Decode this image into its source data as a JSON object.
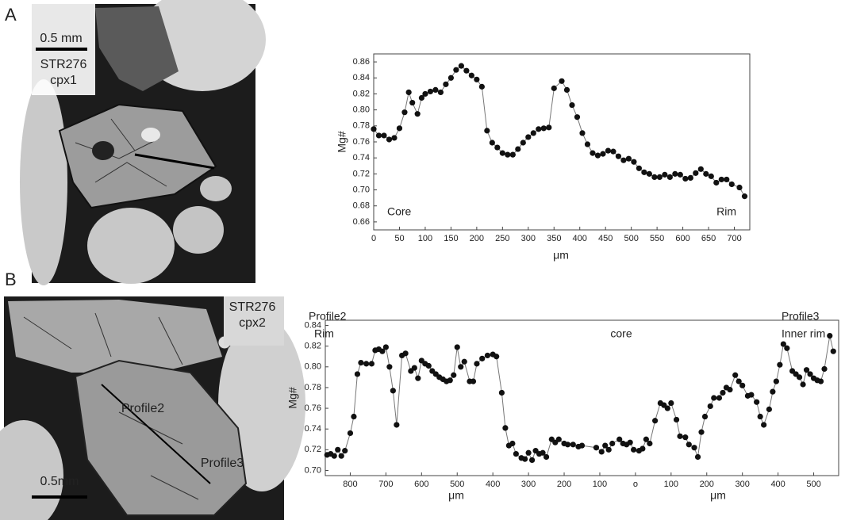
{
  "panels": [
    {
      "label": "A",
      "sample": "STR276",
      "crystal": "cpx1",
      "scale": "0.5 mm"
    },
    {
      "label": "B",
      "sample": "STR276",
      "crystal": "cpx2",
      "scale": "0.5mm",
      "profiles": [
        "Profile2",
        "Profile3"
      ]
    }
  ],
  "chart_data": [
    {
      "type": "line",
      "ylabel": "Mg#",
      "xlabels": [
        "μm"
      ],
      "annotations": [
        "Core",
        "Rim"
      ],
      "xlim": [
        0,
        730
      ],
      "ylim": [
        0.65,
        0.87
      ],
      "xticks": [
        0,
        50,
        100,
        150,
        200,
        250,
        300,
        350,
        400,
        450,
        500,
        550,
        600,
        650,
        700
      ],
      "yticks": [
        {
          "value": 0.66,
          "label": "0.66"
        },
        {
          "value": 0.68,
          "label": "0.68"
        },
        {
          "value": 0.7,
          "label": "0.70"
        },
        {
          "value": 0.72,
          "label": "0.72"
        },
        {
          "value": 0.74,
          "label": "0.74"
        },
        {
          "value": 0.76,
          "label": "0.76"
        },
        {
          "value": 0.78,
          "label": "0.78"
        },
        {
          "value": 0.8,
          "label": "0.80"
        },
        {
          "value": 0.82,
          "label": "0.82"
        },
        {
          "value": 0.84,
          "label": "0.84"
        },
        {
          "value": 0.86,
          "label": "0.86"
        }
      ],
      "line_color": "#777777",
      "x": [
        0,
        10,
        20,
        30,
        40,
        50,
        60,
        68,
        75,
        85,
        93,
        100,
        110,
        120,
        130,
        140,
        150,
        160,
        170,
        180,
        190,
        200,
        210,
        220,
        230,
        240,
        250,
        260,
        270,
        280,
        290,
        300,
        310,
        320,
        330,
        340,
        350,
        365,
        375,
        385,
        395,
        405,
        415,
        425,
        435,
        445,
        455,
        465,
        475,
        485,
        495,
        505,
        515,
        525,
        535,
        545,
        555,
        565,
        575,
        585,
        595,
        605,
        615,
        625,
        635,
        645,
        655,
        665,
        675,
        685,
        695,
        710,
        720
      ],
      "series": [
        {
          "color": "#111111",
          "values": [
            0.776,
            0.768,
            0.768,
            0.763,
            0.765,
            0.777,
            0.797,
            0.822,
            0.809,
            0.795,
            0.815,
            0.82,
            0.823,
            0.825,
            0.822,
            0.832,
            0.84,
            0.85,
            0.855,
            0.849,
            0.843,
            0.838,
            0.829,
            0.774,
            0.759,
            0.753,
            0.746,
            0.744,
            0.744,
            0.751,
            0.759,
            0.766,
            0.771,
            0.776,
            0.777,
            0.778,
            0.827,
            0.836,
            0.825,
            0.806,
            0.791,
            0.771,
            0.757,
            0.746,
            0.743,
            0.745,
            0.749,
            0.748,
            0.742,
            0.737,
            0.739,
            0.735,
            0.727,
            0.722,
            0.72,
            0.716,
            0.716,
            0.719,
            0.716,
            0.72,
            0.719,
            0.714,
            0.715,
            0.721,
            0.726,
            0.72,
            0.717,
            0.709,
            0.713,
            0.713,
            0.707,
            0.703,
            0.692
          ]
        }
      ]
    },
    {
      "type": "line",
      "ylabel": "Mg#",
      "xlabels": [
        "μm",
        "μm"
      ],
      "annotations": [
        "Profile2",
        "Rim",
        "core",
        "Profile3",
        "Inner rim"
      ],
      "xlim": [
        -870,
        570
      ],
      "ylim": [
        0.695,
        0.845
      ],
      "xticks": [
        {
          "value": -800,
          "label": "800"
        },
        {
          "value": -700,
          "label": "700"
        },
        {
          "value": -600,
          "label": "600"
        },
        {
          "value": -500,
          "label": "500"
        },
        {
          "value": -400,
          "label": "400"
        },
        {
          "value": -300,
          "label": "300"
        },
        {
          "value": -200,
          "label": "200"
        },
        {
          "value": -100,
          "label": "100"
        },
        {
          "value": 0,
          "label": "o"
        },
        100,
        200,
        300,
        400,
        500
      ],
      "yticks": [
        {
          "value": 0.7,
          "label": "0.70"
        },
        {
          "value": 0.72,
          "label": "0.72"
        },
        {
          "value": 0.74,
          "label": "0.74"
        },
        {
          "value": 0.76,
          "label": "0.76"
        },
        {
          "value": 0.78,
          "label": "0.78"
        },
        {
          "value": 0.8,
          "label": "0.80"
        },
        {
          "value": 0.82,
          "label": "0.82"
        },
        {
          "value": 0.84,
          "label": "0.84"
        }
      ],
      "line_color": "#777777",
      "x": [
        -865,
        -855,
        -845,
        -835,
        -825,
        -815,
        -800,
        -790,
        -780,
        -770,
        -755,
        -740,
        -730,
        -720,
        -710,
        -700,
        -690,
        -680,
        -670,
        -655,
        -645,
        -630,
        -620,
        -610,
        -600,
        -590,
        -580,
        -570,
        -560,
        -550,
        -540,
        -530,
        -520,
        -510,
        -500,
        -490,
        -480,
        -465,
        -455,
        -445,
        -430,
        -415,
        -400,
        -390,
        -375,
        -365,
        -355,
        -345,
        -335,
        -320,
        -310,
        -300,
        -290,
        -280,
        -270,
        -260,
        -250,
        -235,
        -225,
        -215,
        -200,
        -190,
        -175,
        -160,
        -150,
        -110,
        -95,
        -85,
        -75,
        -65,
        -45,
        -35,
        -25,
        -15,
        -5,
        10,
        20,
        30,
        40,
        55,
        70,
        80,
        90,
        100,
        115,
        125,
        140,
        150,
        165,
        175,
        185,
        195,
        210,
        220,
        235,
        245,
        255,
        265,
        280,
        290,
        300,
        315,
        325,
        340,
        350,
        360,
        375,
        385,
        395,
        405,
        415,
        425,
        440,
        450,
        460,
        470,
        480,
        490,
        500,
        510,
        520,
        530,
        545,
        555
      ],
      "series": [
        {
          "color": "#111111",
          "values": [
            0.715,
            0.716,
            0.714,
            0.72,
            0.714,
            0.719,
            0.736,
            0.752,
            0.793,
            0.804,
            0.803,
            0.803,
            0.816,
            0.817,
            0.815,
            0.819,
            0.8,
            0.777,
            0.744,
            0.811,
            0.813,
            0.796,
            0.799,
            0.789,
            0.806,
            0.803,
            0.801,
            0.796,
            0.793,
            0.79,
            0.788,
            0.786,
            0.787,
            0.792,
            0.819,
            0.8,
            0.805,
            0.786,
            0.786,
            0.803,
            0.808,
            0.811,
            0.812,
            0.81,
            0.775,
            0.741,
            0.724,
            0.726,
            0.716,
            0.712,
            0.711,
            0.717,
            0.71,
            0.719,
            0.716,
            0.717,
            0.713,
            0.73,
            0.727,
            0.73,
            0.726,
            0.725,
            0.725,
            0.723,
            0.724,
            0.722,
            0.718,
            0.724,
            0.72,
            0.726,
            0.73,
            0.726,
            0.725,
            0.727,
            0.72,
            0.719,
            0.721,
            0.73,
            0.726,
            0.748,
            0.765,
            0.763,
            0.76,
            0.765,
            0.749,
            0.733,
            0.732,
            0.725,
            0.722,
            0.713,
            0.737,
            0.752,
            0.762,
            0.77,
            0.77,
            0.775,
            0.78,
            0.778,
            0.792,
            0.786,
            0.782,
            0.772,
            0.773,
            0.766,
            0.752,
            0.744,
            0.759,
            0.776,
            0.786,
            0.802,
            0.822,
            0.818,
            0.796,
            0.793,
            0.79,
            0.783,
            0.797,
            0.793,
            0.789,
            0.787,
            0.786,
            0.798,
            0.83,
            0.815
          ]
        }
      ]
    }
  ]
}
